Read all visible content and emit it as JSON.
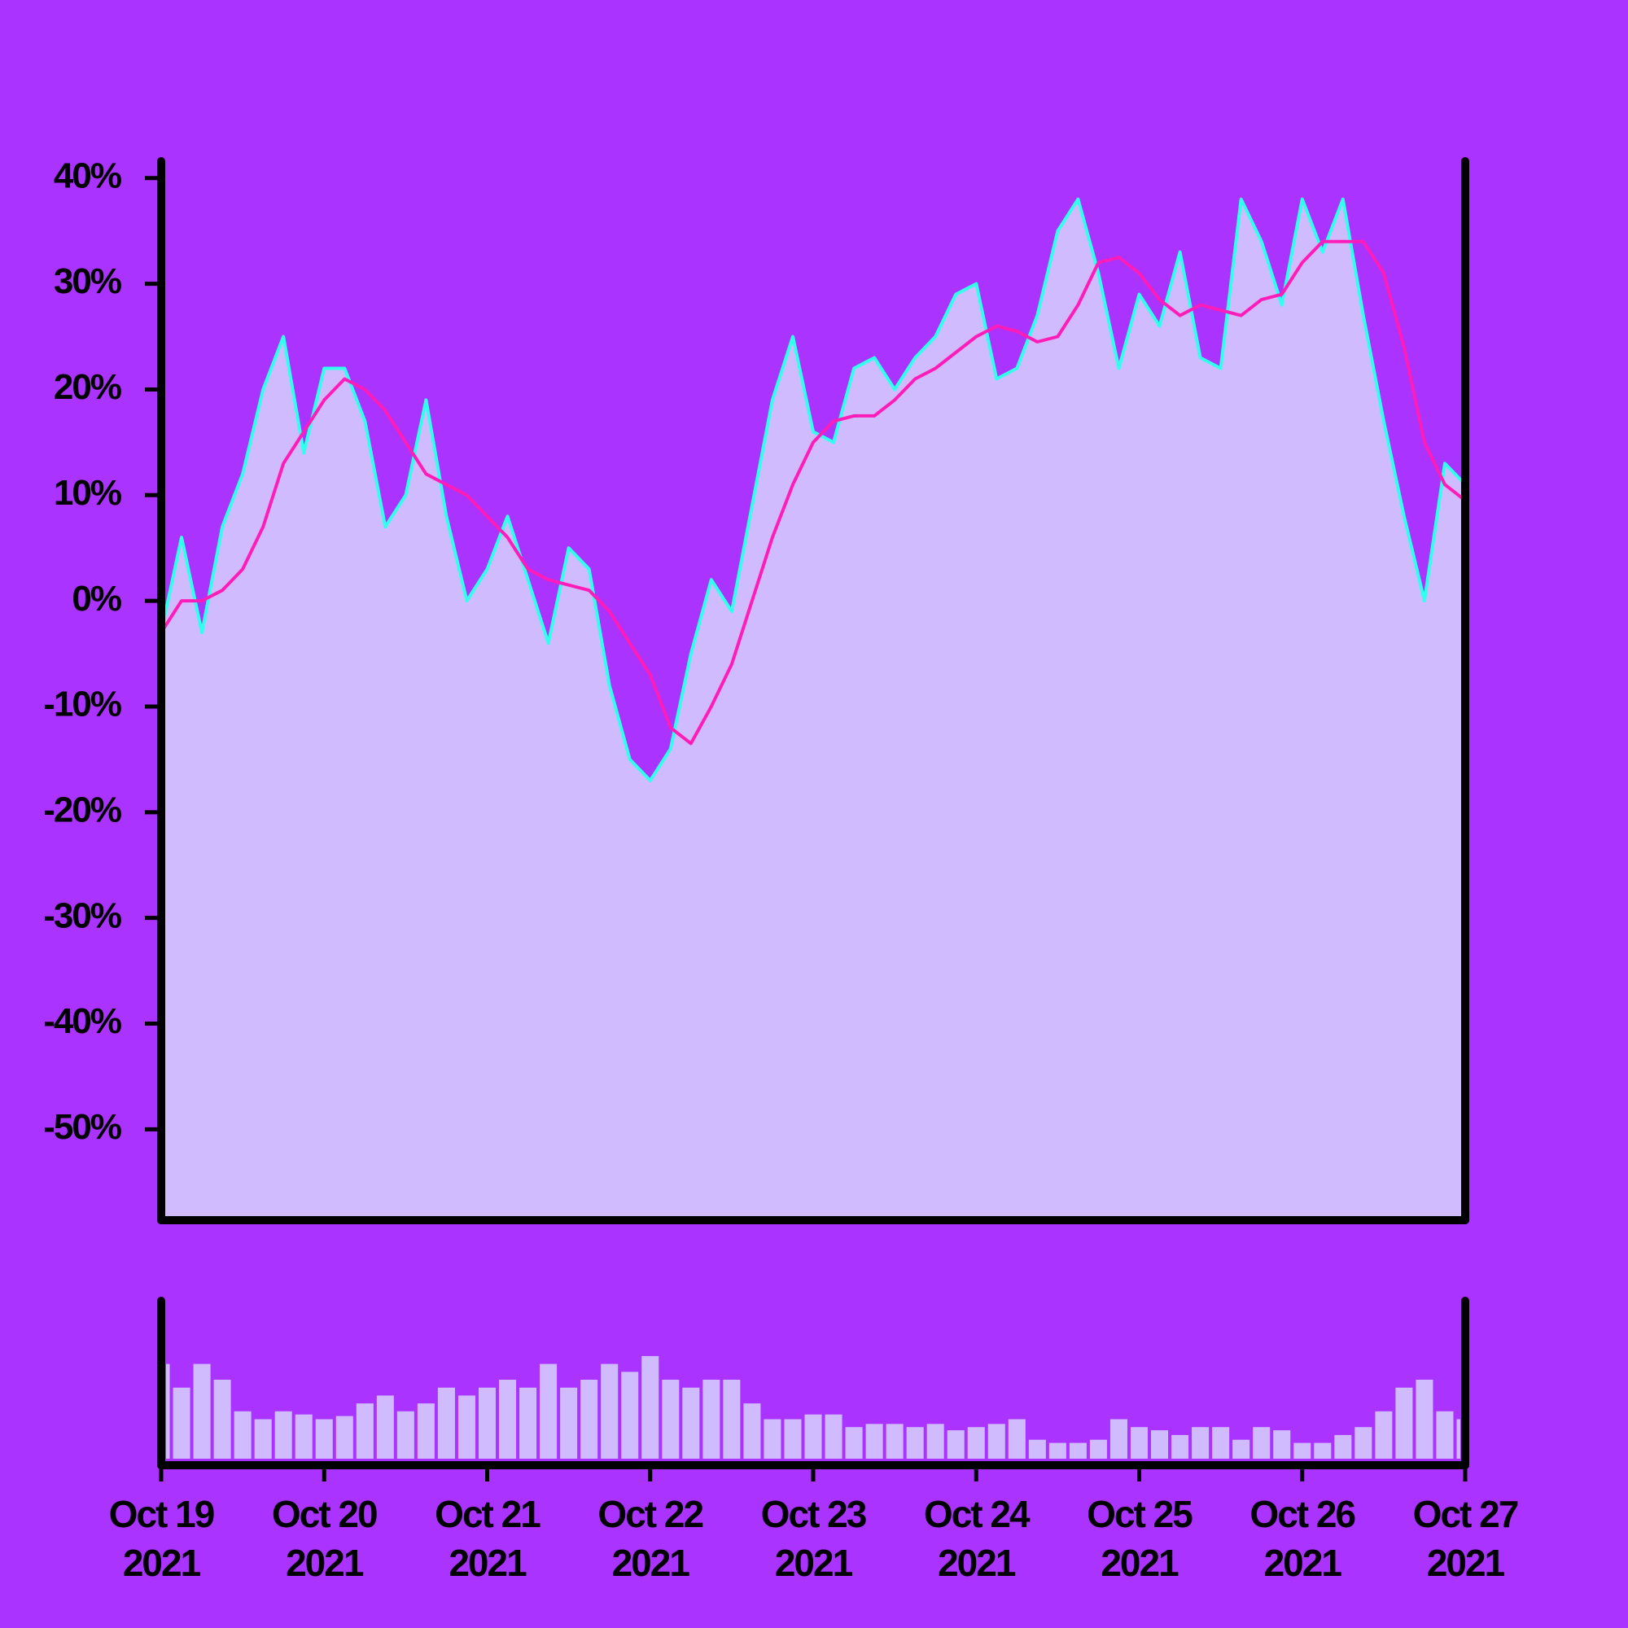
{
  "chart_data": {
    "type": "line",
    "background": "#aa33ff",
    "x": [
      0,
      0.125,
      0.25,
      0.375,
      0.5,
      0.625,
      0.75,
      0.875,
      1,
      1.125,
      1.25,
      1.375,
      1.5,
      1.625,
      1.75,
      1.875,
      2,
      2.125,
      2.25,
      2.375,
      2.5,
      2.625,
      2.75,
      2.875,
      3,
      3.125,
      3.25,
      3.375,
      3.5,
      3.625,
      3.75,
      3.875,
      4,
      4.125,
      4.25,
      4.375,
      4.5,
      4.625,
      4.75,
      4.875,
      5,
      5.125,
      5.25,
      5.375,
      5.5,
      5.625,
      5.75,
      5.875,
      6,
      6.125,
      6.25,
      6.375,
      6.5,
      6.625,
      6.75,
      6.875,
      7,
      7.125,
      7.25,
      7.375,
      7.5,
      7.625,
      7.75,
      7.875,
      8
    ],
    "series": [
      {
        "color": "#33ffee",
        "fill": "#d0bbff",
        "values": [
          -3,
          6,
          -3,
          7,
          12,
          20,
          25,
          14,
          22,
          22,
          17,
          7,
          10,
          19,
          8,
          0,
          3,
          8,
          2,
          -4,
          5,
          3,
          -8,
          -15,
          -17,
          -14,
          -5,
          2,
          -1,
          9,
          19,
          25,
          16,
          15,
          22,
          23,
          20,
          23,
          25,
          29,
          30,
          21,
          22,
          27,
          35,
          38,
          31,
          22,
          29,
          26,
          33,
          23,
          22,
          38,
          34,
          28,
          38,
          33,
          38,
          27,
          17,
          8,
          0,
          13,
          11
        ]
      },
      {
        "color": "#ff1cb8",
        "values": [
          -3,
          0,
          0,
          1,
          3,
          7,
          13,
          16,
          19,
          21,
          20,
          18,
          15,
          12,
          11,
          10,
          8,
          6,
          3,
          2,
          1.5,
          1,
          -1,
          -4,
          -7,
          -12,
          -13.5,
          -10,
          -6,
          0,
          6,
          11,
          15,
          17,
          17.5,
          17.5,
          19,
          21,
          22,
          23.5,
          25,
          26,
          25.5,
          24.5,
          25,
          28,
          32,
          32.5,
          31,
          28.5,
          27,
          28,
          27.5,
          27,
          28.5,
          29,
          32,
          34,
          34,
          34,
          31,
          24,
          15,
          11,
          9.5
        ]
      }
    ],
    "volume": {
      "color": "#d0bbff",
      "ylim": [
        0,
        100
      ],
      "values": [
        60,
        45,
        60,
        50,
        30,
        25,
        30,
        28,
        25,
        27,
        35,
        40,
        30,
        35,
        45,
        40,
        45,
        50,
        45,
        60,
        45,
        50,
        60,
        55,
        65,
        50,
        45,
        50,
        50,
        35,
        25,
        25,
        28,
        28,
        20,
        22,
        22,
        20,
        22,
        18,
        20,
        22,
        25,
        12,
        10,
        10,
        12,
        25,
        20,
        18,
        15,
        20,
        20,
        12,
        20,
        18,
        10,
        10,
        15,
        20,
        30,
        45,
        50,
        30,
        25
      ]
    },
    "xlim": [
      0,
      8
    ],
    "xticks": [
      {
        "value": 0,
        "label": "Oct 19\n2021"
      },
      {
        "value": 1,
        "label": "Oct 20\n2021"
      },
      {
        "value": 2,
        "label": "Oct 21\n2021"
      },
      {
        "value": 3,
        "label": "Oct 22\n2021"
      },
      {
        "value": 4,
        "label": "Oct 23\n2021"
      },
      {
        "value": 5,
        "label": "Oct 24\n2021"
      },
      {
        "value": 6,
        "label": "Oct 25\n2021"
      },
      {
        "value": 7,
        "label": "Oct 26\n2021"
      },
      {
        "value": 8,
        "label": "Oct 27\n2021"
      }
    ],
    "ylim": [
      -58.6,
      41.6
    ],
    "yticks": [
      {
        "value": -50,
        "label": "-50%"
      },
      {
        "value": -40,
        "label": "-40%"
      },
      {
        "value": -30,
        "label": "-30%"
      },
      {
        "value": -20,
        "label": "-20%"
      },
      {
        "value": -10,
        "label": "-10%"
      },
      {
        "value": 0,
        "label": "0%"
      },
      {
        "value": 10,
        "label": "10%"
      },
      {
        "value": 20,
        "label": "20%"
      },
      {
        "value": 30,
        "label": "30%"
      },
      {
        "value": 40,
        "label": "40%"
      }
    ]
  }
}
